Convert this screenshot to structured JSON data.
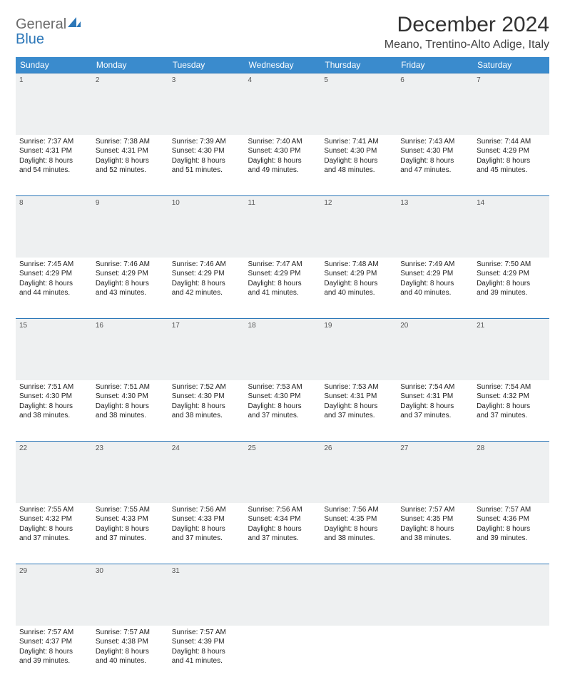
{
  "brand": {
    "general": "General",
    "blue": "Blue"
  },
  "title": "December 2024",
  "location": "Meano, Trentino-Alto Adige, Italy",
  "colors": {
    "header_bg": "#3a8bcd",
    "header_text": "#ffffff",
    "daynum_bg": "#eef0f1",
    "rule": "#2c77b8",
    "logo_gray": "#6b6b6b",
    "logo_blue": "#2c77b8"
  },
  "weekdays": [
    "Sunday",
    "Monday",
    "Tuesday",
    "Wednesday",
    "Thursday",
    "Friday",
    "Saturday"
  ],
  "rows": [
    {
      "nums": [
        "1",
        "2",
        "3",
        "4",
        "5",
        "6",
        "7"
      ],
      "cells": [
        {
          "sunrise": "Sunrise: 7:37 AM",
          "sunset": "Sunset: 4:31 PM",
          "d1": "Daylight: 8 hours",
          "d2": "and 54 minutes."
        },
        {
          "sunrise": "Sunrise: 7:38 AM",
          "sunset": "Sunset: 4:31 PM",
          "d1": "Daylight: 8 hours",
          "d2": "and 52 minutes."
        },
        {
          "sunrise": "Sunrise: 7:39 AM",
          "sunset": "Sunset: 4:30 PM",
          "d1": "Daylight: 8 hours",
          "d2": "and 51 minutes."
        },
        {
          "sunrise": "Sunrise: 7:40 AM",
          "sunset": "Sunset: 4:30 PM",
          "d1": "Daylight: 8 hours",
          "d2": "and 49 minutes."
        },
        {
          "sunrise": "Sunrise: 7:41 AM",
          "sunset": "Sunset: 4:30 PM",
          "d1": "Daylight: 8 hours",
          "d2": "and 48 minutes."
        },
        {
          "sunrise": "Sunrise: 7:43 AM",
          "sunset": "Sunset: 4:30 PM",
          "d1": "Daylight: 8 hours",
          "d2": "and 47 minutes."
        },
        {
          "sunrise": "Sunrise: 7:44 AM",
          "sunset": "Sunset: 4:29 PM",
          "d1": "Daylight: 8 hours",
          "d2": "and 45 minutes."
        }
      ]
    },
    {
      "nums": [
        "8",
        "9",
        "10",
        "11",
        "12",
        "13",
        "14"
      ],
      "cells": [
        {
          "sunrise": "Sunrise: 7:45 AM",
          "sunset": "Sunset: 4:29 PM",
          "d1": "Daylight: 8 hours",
          "d2": "and 44 minutes."
        },
        {
          "sunrise": "Sunrise: 7:46 AM",
          "sunset": "Sunset: 4:29 PM",
          "d1": "Daylight: 8 hours",
          "d2": "and 43 minutes."
        },
        {
          "sunrise": "Sunrise: 7:46 AM",
          "sunset": "Sunset: 4:29 PM",
          "d1": "Daylight: 8 hours",
          "d2": "and 42 minutes."
        },
        {
          "sunrise": "Sunrise: 7:47 AM",
          "sunset": "Sunset: 4:29 PM",
          "d1": "Daylight: 8 hours",
          "d2": "and 41 minutes."
        },
        {
          "sunrise": "Sunrise: 7:48 AM",
          "sunset": "Sunset: 4:29 PM",
          "d1": "Daylight: 8 hours",
          "d2": "and 40 minutes."
        },
        {
          "sunrise": "Sunrise: 7:49 AM",
          "sunset": "Sunset: 4:29 PM",
          "d1": "Daylight: 8 hours",
          "d2": "and 40 minutes."
        },
        {
          "sunrise": "Sunrise: 7:50 AM",
          "sunset": "Sunset: 4:29 PM",
          "d1": "Daylight: 8 hours",
          "d2": "and 39 minutes."
        }
      ]
    },
    {
      "nums": [
        "15",
        "16",
        "17",
        "18",
        "19",
        "20",
        "21"
      ],
      "cells": [
        {
          "sunrise": "Sunrise: 7:51 AM",
          "sunset": "Sunset: 4:30 PM",
          "d1": "Daylight: 8 hours",
          "d2": "and 38 minutes."
        },
        {
          "sunrise": "Sunrise: 7:51 AM",
          "sunset": "Sunset: 4:30 PM",
          "d1": "Daylight: 8 hours",
          "d2": "and 38 minutes."
        },
        {
          "sunrise": "Sunrise: 7:52 AM",
          "sunset": "Sunset: 4:30 PM",
          "d1": "Daylight: 8 hours",
          "d2": "and 38 minutes."
        },
        {
          "sunrise": "Sunrise: 7:53 AM",
          "sunset": "Sunset: 4:30 PM",
          "d1": "Daylight: 8 hours",
          "d2": "and 37 minutes."
        },
        {
          "sunrise": "Sunrise: 7:53 AM",
          "sunset": "Sunset: 4:31 PM",
          "d1": "Daylight: 8 hours",
          "d2": "and 37 minutes."
        },
        {
          "sunrise": "Sunrise: 7:54 AM",
          "sunset": "Sunset: 4:31 PM",
          "d1": "Daylight: 8 hours",
          "d2": "and 37 minutes."
        },
        {
          "sunrise": "Sunrise: 7:54 AM",
          "sunset": "Sunset: 4:32 PM",
          "d1": "Daylight: 8 hours",
          "d2": "and 37 minutes."
        }
      ]
    },
    {
      "nums": [
        "22",
        "23",
        "24",
        "25",
        "26",
        "27",
        "28"
      ],
      "cells": [
        {
          "sunrise": "Sunrise: 7:55 AM",
          "sunset": "Sunset: 4:32 PM",
          "d1": "Daylight: 8 hours",
          "d2": "and 37 minutes."
        },
        {
          "sunrise": "Sunrise: 7:55 AM",
          "sunset": "Sunset: 4:33 PM",
          "d1": "Daylight: 8 hours",
          "d2": "and 37 minutes."
        },
        {
          "sunrise": "Sunrise: 7:56 AM",
          "sunset": "Sunset: 4:33 PM",
          "d1": "Daylight: 8 hours",
          "d2": "and 37 minutes."
        },
        {
          "sunrise": "Sunrise: 7:56 AM",
          "sunset": "Sunset: 4:34 PM",
          "d1": "Daylight: 8 hours",
          "d2": "and 37 minutes."
        },
        {
          "sunrise": "Sunrise: 7:56 AM",
          "sunset": "Sunset: 4:35 PM",
          "d1": "Daylight: 8 hours",
          "d2": "and 38 minutes."
        },
        {
          "sunrise": "Sunrise: 7:57 AM",
          "sunset": "Sunset: 4:35 PM",
          "d1": "Daylight: 8 hours",
          "d2": "and 38 minutes."
        },
        {
          "sunrise": "Sunrise: 7:57 AM",
          "sunset": "Sunset: 4:36 PM",
          "d1": "Daylight: 8 hours",
          "d2": "and 39 minutes."
        }
      ]
    },
    {
      "nums": [
        "29",
        "30",
        "31",
        "",
        "",
        "",
        ""
      ],
      "cells": [
        {
          "sunrise": "Sunrise: 7:57 AM",
          "sunset": "Sunset: 4:37 PM",
          "d1": "Daylight: 8 hours",
          "d2": "and 39 minutes."
        },
        {
          "sunrise": "Sunrise: 7:57 AM",
          "sunset": "Sunset: 4:38 PM",
          "d1": "Daylight: 8 hours",
          "d2": "and 40 minutes."
        },
        {
          "sunrise": "Sunrise: 7:57 AM",
          "sunset": "Sunset: 4:39 PM",
          "d1": "Daylight: 8 hours",
          "d2": "and 41 minutes."
        },
        {
          "sunrise": "",
          "sunset": "",
          "d1": "",
          "d2": ""
        },
        {
          "sunrise": "",
          "sunset": "",
          "d1": "",
          "d2": ""
        },
        {
          "sunrise": "",
          "sunset": "",
          "d1": "",
          "d2": ""
        },
        {
          "sunrise": "",
          "sunset": "",
          "d1": "",
          "d2": ""
        }
      ]
    }
  ]
}
